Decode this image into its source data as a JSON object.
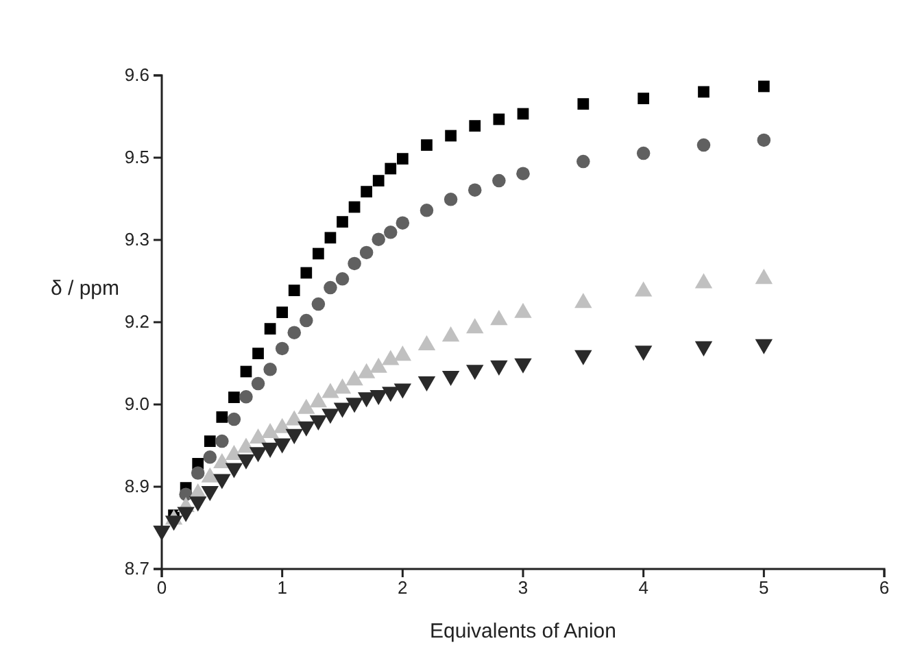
{
  "chart_data": {
    "type": "scatter",
    "xlabel": "Equivalents of Anion",
    "ylabel": "δ / ppm",
    "xlim": [
      0,
      6
    ],
    "xticks": [
      0,
      1,
      2,
      3,
      4,
      5,
      6
    ],
    "ylim": [
      8.7,
      9.6
    ],
    "yticks": [
      8.7,
      {
        "value": 8.85,
        "label": "8.9"
      },
      {
        "value": 9.0,
        "label": "9.0"
      },
      {
        "value": 9.15,
        "label": "9.2"
      },
      9.3,
      {
        "value": 9.45,
        "label": "9.5"
      },
      9.6
    ],
    "grid": false,
    "x": [
      0,
      0.1,
      0.2,
      0.3,
      0.4,
      0.5,
      0.6,
      0.7,
      0.8,
      0.9,
      1.0,
      1.1,
      1.2,
      1.3,
      1.4,
      1.5,
      1.6,
      1.7,
      1.8,
      1.9,
      2.0,
      2.2,
      2.4,
      2.6,
      2.8,
      3.0,
      3.5,
      4,
      4.5,
      5
    ],
    "series": [
      {
        "color": "#000000",
        "marker": "square",
        "values": [
          null,
          8.798,
          8.848,
          8.892,
          8.933,
          8.977,
          9.013,
          9.06,
          9.093,
          9.138,
          9.168,
          9.208,
          9.24,
          9.275,
          9.304,
          9.333,
          9.36,
          9.388,
          9.408,
          9.43,
          9.448,
          9.473,
          9.49,
          9.508,
          9.52,
          9.53,
          9.548,
          9.558,
          9.57,
          9.58
        ]
      },
      {
        "color": "#606060",
        "marker": "circle",
        "values": [
          null,
          null,
          8.836,
          8.875,
          8.904,
          8.933,
          8.973,
          9.014,
          9.038,
          9.064,
          9.102,
          9.131,
          9.153,
          9.183,
          9.213,
          9.229,
          9.257,
          9.277,
          9.301,
          9.314,
          9.331,
          9.354,
          9.374,
          9.391,
          9.408,
          9.421,
          9.443,
          9.458,
          9.473,
          9.482
        ]
      },
      {
        "color": "#c0c0c0",
        "marker": "triangle",
        "values": [
          null,
          8.79,
          8.813,
          8.838,
          8.867,
          8.893,
          8.908,
          8.921,
          8.938,
          8.948,
          8.957,
          8.971,
          8.992,
          9.004,
          9.021,
          9.029,
          9.044,
          9.057,
          9.067,
          9.081,
          9.089,
          9.108,
          9.124,
          9.139,
          9.154,
          9.167,
          9.185,
          9.206,
          9.221,
          9.229
        ]
      },
      {
        "color": "#2a2a2a",
        "marker": "triangle-down",
        "values": [
          8.77,
          8.788,
          8.804,
          8.823,
          8.842,
          8.864,
          8.884,
          8.9,
          8.913,
          8.921,
          8.929,
          8.946,
          8.96,
          8.971,
          8.983,
          8.994,
          9.003,
          9.013,
          9.017,
          9.023,
          9.029,
          9.042,
          9.052,
          9.063,
          9.071,
          9.075,
          9.09,
          9.098,
          9.106,
          9.11
        ]
      }
    ]
  }
}
